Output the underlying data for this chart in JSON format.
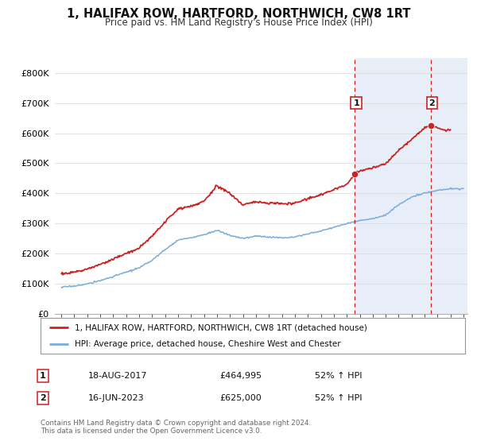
{
  "title": "1, HALIFAX ROW, HARTFORD, NORTHWICH, CW8 1RT",
  "subtitle": "Price paid vs. HM Land Registry's House Price Index (HPI)",
  "title_fontsize": 10.5,
  "subtitle_fontsize": 8.5,
  "ylim": [
    0,
    850000
  ],
  "yticks": [
    0,
    100000,
    200000,
    300000,
    400000,
    500000,
    600000,
    700000,
    800000
  ],
  "ytick_labels": [
    "£0",
    "£100K",
    "£200K",
    "£300K",
    "£400K",
    "£500K",
    "£600K",
    "£700K",
    "£800K"
  ],
  "price_paid_color": "#cc2222",
  "hpi_color": "#7aaddc",
  "background_color": "#ffffff",
  "plot_bg_color": "#ffffff",
  "span_color": "#e8eef8",
  "grid_color": "#dddddd",
  "legend_house": "1, HALIFAX ROW, HARTFORD, NORTHWICH, CW8 1RT (detached house)",
  "legend_hpi": "HPI: Average price, detached house, Cheshire West and Chester",
  "transaction1_label": "1",
  "transaction1_date": "18-AUG-2017",
  "transaction1_price": "£464,995",
  "transaction1_hpi": "52% ↑ HPI",
  "transaction2_label": "2",
  "transaction2_date": "16-JUN-2023",
  "transaction2_price": "£625,000",
  "transaction2_hpi": "52% ↑ HPI",
  "footnote": "Contains HM Land Registry data © Crown copyright and database right 2024.\nThis data is licensed under the Open Government Licence v3.0.",
  "marker1_x": 2017.63,
  "marker1_y": 464995,
  "marker2_x": 2023.46,
  "marker2_y": 625000,
  "vline1_x": 2017.63,
  "vline2_x": 2023.46,
  "xlim_left": 1994.5,
  "xlim_right": 2026.3
}
